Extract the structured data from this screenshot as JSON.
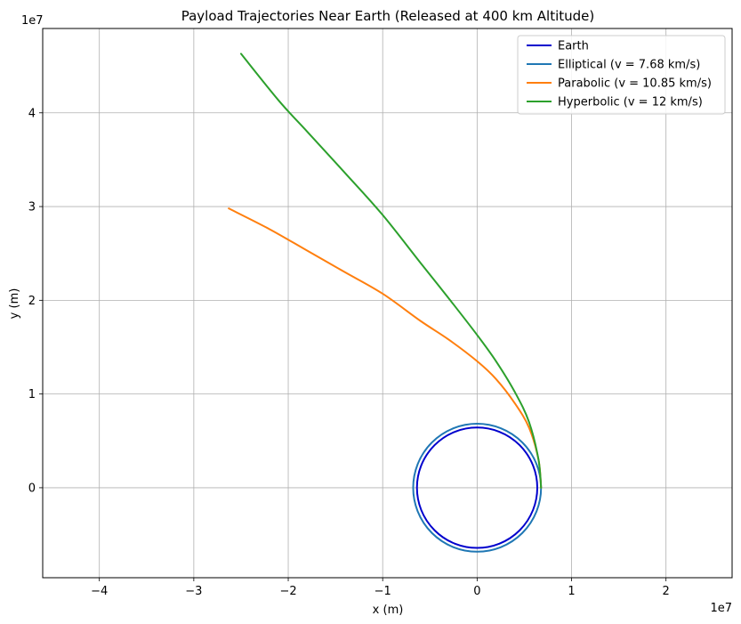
{
  "chart_data": {
    "type": "line",
    "title": "Payload Trajectories Near Earth (Released at 400 km Altitude)",
    "xlabel": "x (m)",
    "ylabel": "y (m)",
    "x_offset_label": "1e7",
    "y_offset_label": "1e7",
    "xlim": [
      -46000000.0,
      27000000.0
    ],
    "ylim": [
      -9600000.0,
      49000000.0
    ],
    "xticks": [
      -40000000.0,
      -30000000.0,
      -20000000.0,
      -10000000.0,
      0,
      10000000.0,
      20000000.0
    ],
    "xtick_labels": [
      "−4",
      "−3",
      "−2",
      "−1",
      "0",
      "1",
      "2"
    ],
    "yticks": [
      0,
      10000000.0,
      20000000.0,
      30000000.0,
      40000000.0
    ],
    "ytick_labels": [
      "0",
      "1",
      "2",
      "3",
      "4"
    ],
    "grid": true,
    "aspect": "equal",
    "legend_position": "top-right",
    "earth_radius": 6371000,
    "release_radius": 6771000,
    "series": [
      {
        "name": "Earth",
        "color": "#0000cd",
        "shape": "circle",
        "radius": 6371000
      },
      {
        "name": "Elliptical (v = 7.68 km/s)",
        "color": "#1f77b4",
        "shape": "circle",
        "radius": 6771000
      },
      {
        "name": "Parabolic (v = 10.85 km/s)",
        "color": "#ff7f0e",
        "shape": "curve",
        "x": [
          6771000,
          6500000,
          5500000,
          4000000,
          2000000,
          0,
          -3000000,
          -6000000,
          -10000000,
          -14000000,
          -18000000,
          -22000000,
          -26300000
        ],
        "y": [
          0,
          3000000,
          6400000,
          9000000,
          11600000,
          13500000,
          15800000,
          17800000,
          20700000,
          23000000,
          25300000,
          27600000,
          29800000
        ]
      },
      {
        "name": "Hyperbolic (v = 12 km/s)",
        "color": "#2ca02c",
        "shape": "curve",
        "x": [
          6771000,
          6500000,
          5500000,
          4000000,
          2000000,
          0,
          -3000000,
          -6000000,
          -10000000,
          -14000000,
          -18000000,
          -21000000,
          -25000000
        ],
        "y": [
          0,
          3000000,
          7000000,
          10200000,
          13500000,
          16300000,
          20200000,
          24000000,
          29100000,
          33600000,
          38000000,
          41300000,
          46300000
        ]
      }
    ]
  }
}
